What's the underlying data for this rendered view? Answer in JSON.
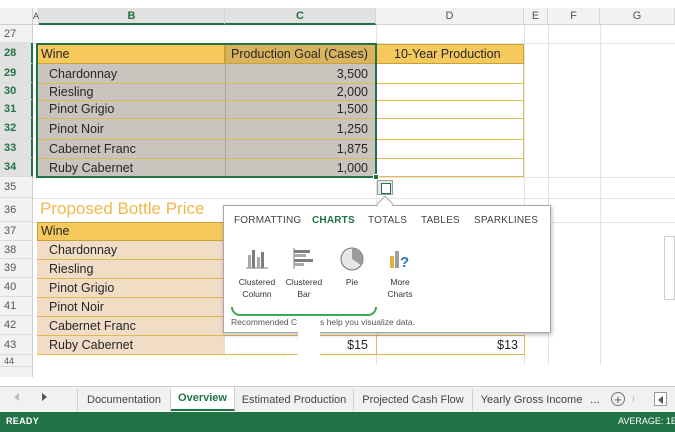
{
  "columns": [
    "A",
    "B",
    "C",
    "D",
    "E",
    "F",
    "G"
  ],
  "rows": [
    "27",
    "28",
    "29",
    "30",
    "31",
    "32",
    "33",
    "34",
    "35",
    "36",
    "37",
    "38",
    "39",
    "40",
    "41",
    "42",
    "43",
    "44"
  ],
  "table1": {
    "header": {
      "wine": "Wine",
      "goal": "Production Goal (Cases)",
      "ten_year": "10-Year Production"
    },
    "rows": [
      {
        "wine": "Chardonnay",
        "goal": "3,500"
      },
      {
        "wine": "Riesling",
        "goal": "2,000"
      },
      {
        "wine": "Pinot Grigio",
        "goal": "1,500"
      },
      {
        "wine": "Pinot Noir",
        "goal": "1,250"
      },
      {
        "wine": "Cabernet Franc",
        "goal": "1,875"
      },
      {
        "wine": "Ruby Cabernet",
        "goal": "1,000"
      }
    ]
  },
  "table2": {
    "title": "Proposed Bottle Price",
    "header": {
      "wine": "Wine"
    },
    "rows": [
      {
        "wine": "Chardonnay"
      },
      {
        "wine": "Riesling"
      },
      {
        "wine": "Pinot Grigio"
      },
      {
        "wine": "Pinot Noir"
      },
      {
        "wine": "Cabernet Franc"
      },
      {
        "wine": "Ruby Cabernet",
        "c": "$15",
        "d": "$13"
      }
    ]
  },
  "quick_analysis": {
    "tabs": [
      "FORMATTING",
      "CHARTS",
      "TOTALS",
      "TABLES",
      "SPARKLINES"
    ],
    "active_tab": "CHARTS",
    "buttons": [
      {
        "line1": "Clustered",
        "line2": "Column",
        "icon": "clustered-column-chart-icon"
      },
      {
        "line1": "Clustered",
        "line2": "Bar",
        "icon": "clustered-bar-chart-icon"
      },
      {
        "line1": "Pie",
        "line2": "",
        "icon": "pie-chart-icon"
      },
      {
        "line1": "More",
        "line2": "Charts",
        "icon": "more-charts-icon"
      }
    ],
    "footer_left": "Recommended C",
    "footer_right": "s help you visualize data."
  },
  "sheet_tabs": [
    "Documentation",
    "Overview",
    "Estimated Production",
    "Projected Cash Flow",
    "Yearly Gross Income"
  ],
  "active_sheet": "Overview",
  "more_tabs": "...",
  "status": {
    "left": "READY",
    "right": "AVERAGE: 1E"
  },
  "colors": {
    "gold_header": "#f5c95c",
    "tan_fill": "#f1dcc6",
    "selection_gray": "#c9c4be",
    "excel_green": "#217346",
    "title_orange": "#f0b84a"
  }
}
